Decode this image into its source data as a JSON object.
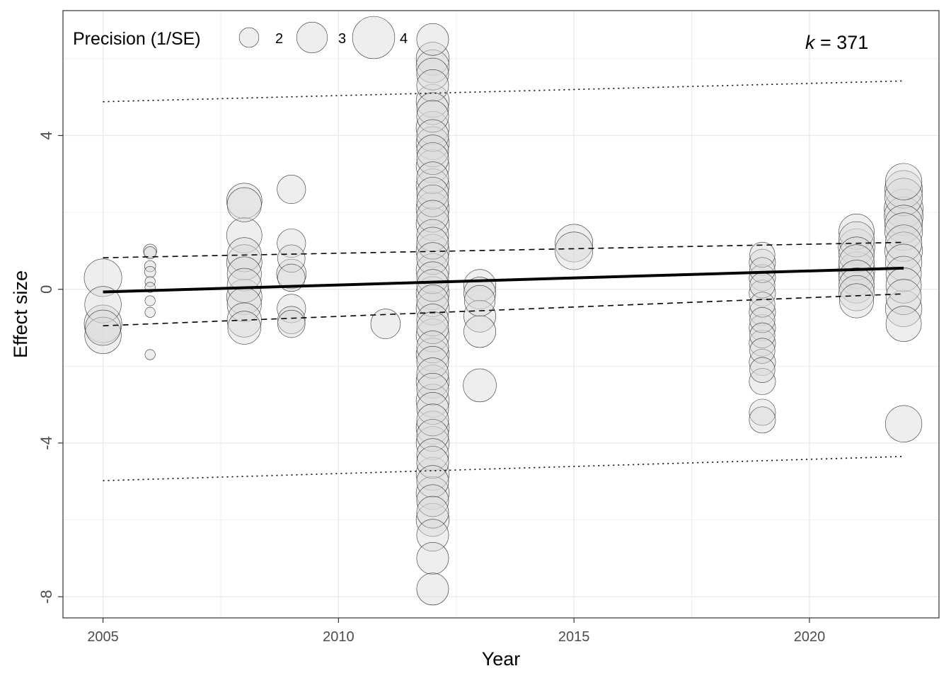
{
  "chart_data": {
    "type": "scatter",
    "xlabel": "Year",
    "ylabel": "Effect size",
    "xlim": [
      2004.15,
      2022.75
    ],
    "ylim": [
      -8.55,
      7.25
    ],
    "x_ticks": [
      2005,
      2010,
      2015,
      2020
    ],
    "x_tick_labels": [
      "2005",
      "2010",
      "2015",
      "2020"
    ],
    "y_ticks": [
      -8,
      -4,
      0,
      4
    ],
    "y_tick_labels": [
      "-8",
      "-4",
      "0",
      "4"
    ],
    "grid": true,
    "legend": {
      "title": "Precision (1/SE)",
      "position": "top-left",
      "items": [
        {
          "label": "2",
          "precision": 2
        },
        {
          "label": "3",
          "precision": 3
        },
        {
          "label": "4",
          "precision": 4
        }
      ]
    },
    "annotation": {
      "italic": "k",
      "rest": " = 371"
    },
    "colors": {
      "point_fill": "#d9d9d9",
      "point_stroke": "#333333",
      "line": "#000000",
      "panel_border": "#333333",
      "grid": "#ebebeb"
    },
    "points": [
      {
        "x": 2005,
        "y": 0.3,
        "p": 3.6
      },
      {
        "x": 2005,
        "y": -0.4,
        "p": 3.5
      },
      {
        "x": 2005,
        "y": -0.9,
        "p": 3.6
      },
      {
        "x": 2005,
        "y": -1.2,
        "p": 3.5
      },
      {
        "x": 2005,
        "y": -1.0,
        "p": 3.4
      },
      {
        "x": 2006,
        "y": 1.0,
        "p": 1.4
      },
      {
        "x": 2006,
        "y": 0.95,
        "p": 1.3
      },
      {
        "x": 2006,
        "y": 0.6,
        "p": 1.2
      },
      {
        "x": 2006,
        "y": 0.45,
        "p": 1.2
      },
      {
        "x": 2006,
        "y": 0.2,
        "p": 1.1
      },
      {
        "x": 2006,
        "y": 0.05,
        "p": 1.1
      },
      {
        "x": 2006,
        "y": -0.3,
        "p": 1.1
      },
      {
        "x": 2006,
        "y": -0.6,
        "p": 1.1
      },
      {
        "x": 2006,
        "y": -1.7,
        "p": 1.1
      },
      {
        "x": 2008,
        "y": 2.3,
        "p": 3.4
      },
      {
        "x": 2008,
        "y": 2.2,
        "p": 3.3
      },
      {
        "x": 2008,
        "y": 1.4,
        "p": 3.4
      },
      {
        "x": 2008,
        "y": 0.9,
        "p": 3.3
      },
      {
        "x": 2008,
        "y": 0.7,
        "p": 3.4
      },
      {
        "x": 2008,
        "y": 0.4,
        "p": 3.3
      },
      {
        "x": 2008,
        "y": 0.1,
        "p": 3.3
      },
      {
        "x": 2008,
        "y": -0.2,
        "p": 3.4
      },
      {
        "x": 2008,
        "y": -0.4,
        "p": 3.3
      },
      {
        "x": 2008,
        "y": -0.8,
        "p": 3.3
      },
      {
        "x": 2008,
        "y": -1.0,
        "p": 3.2
      },
      {
        "x": 2009,
        "y": 2.6,
        "p": 2.8
      },
      {
        "x": 2009,
        "y": 1.2,
        "p": 2.8
      },
      {
        "x": 2009,
        "y": 0.8,
        "p": 2.7
      },
      {
        "x": 2009,
        "y": 0.4,
        "p": 2.9
      },
      {
        "x": 2009,
        "y": 0.3,
        "p": 2.7
      },
      {
        "x": 2009,
        "y": -0.5,
        "p": 2.8
      },
      {
        "x": 2009,
        "y": -0.8,
        "p": 2.7
      },
      {
        "x": 2009,
        "y": -0.9,
        "p": 2.7
      },
      {
        "x": 2011,
        "y": -0.9,
        "p": 2.9
      },
      {
        "x": 2012,
        "y": 6.5,
        "p": 3.1
      },
      {
        "x": 2012,
        "y": 6.0,
        "p": 3.2
      },
      {
        "x": 2012,
        "y": 5.8,
        "p": 3.2
      },
      {
        "x": 2012,
        "y": 5.6,
        "p": 3.1
      },
      {
        "x": 2012,
        "y": 5.3,
        "p": 3.1
      },
      {
        "x": 2012,
        "y": 4.9,
        "p": 3.2
      },
      {
        "x": 2012,
        "y": 4.7,
        "p": 3.1
      },
      {
        "x": 2012,
        "y": 4.5,
        "p": 3.1
      },
      {
        "x": 2012,
        "y": 4.2,
        "p": 3.2
      },
      {
        "x": 2012,
        "y": 4.0,
        "p": 3.1
      },
      {
        "x": 2012,
        "y": 3.8,
        "p": 3.2
      },
      {
        "x": 2012,
        "y": 3.6,
        "p": 3.1
      },
      {
        "x": 2012,
        "y": 3.4,
        "p": 3.1
      },
      {
        "x": 2012,
        "y": 3.2,
        "p": 3.2
      },
      {
        "x": 2012,
        "y": 2.9,
        "p": 3.1
      },
      {
        "x": 2012,
        "y": 2.7,
        "p": 3.2
      },
      {
        "x": 2012,
        "y": 2.5,
        "p": 3.1
      },
      {
        "x": 2012,
        "y": 2.3,
        "p": 3.1
      },
      {
        "x": 2012,
        "y": 2.1,
        "p": 3.2
      },
      {
        "x": 2012,
        "y": 1.9,
        "p": 3.1
      },
      {
        "x": 2012,
        "y": 1.7,
        "p": 3.2
      },
      {
        "x": 2012,
        "y": 1.4,
        "p": 3.1
      },
      {
        "x": 2012,
        "y": 1.2,
        "p": 3.1
      },
      {
        "x": 2012,
        "y": 1.0,
        "p": 3.2
      },
      {
        "x": 2012,
        "y": 0.8,
        "p": 3.1
      },
      {
        "x": 2012,
        "y": 0.5,
        "p": 3.2
      },
      {
        "x": 2012,
        "y": 0.3,
        "p": 3.1
      },
      {
        "x": 2012,
        "y": 0.1,
        "p": 3.1
      },
      {
        "x": 2012,
        "y": -0.1,
        "p": 3.2
      },
      {
        "x": 2012,
        "y": -0.3,
        "p": 3.1
      },
      {
        "x": 2012,
        "y": -0.5,
        "p": 3.2
      },
      {
        "x": 2012,
        "y": -0.8,
        "p": 3.1
      },
      {
        "x": 2012,
        "y": -1.0,
        "p": 3.1
      },
      {
        "x": 2012,
        "y": -1.2,
        "p": 3.2
      },
      {
        "x": 2012,
        "y": -1.5,
        "p": 3.1
      },
      {
        "x": 2012,
        "y": -1.7,
        "p": 3.2
      },
      {
        "x": 2012,
        "y": -1.9,
        "p": 3.1
      },
      {
        "x": 2012,
        "y": -2.2,
        "p": 3.1
      },
      {
        "x": 2012,
        "y": -2.4,
        "p": 3.2
      },
      {
        "x": 2012,
        "y": -2.6,
        "p": 3.1
      },
      {
        "x": 2012,
        "y": -2.9,
        "p": 3.2
      },
      {
        "x": 2012,
        "y": -3.1,
        "p": 3.1
      },
      {
        "x": 2012,
        "y": -3.4,
        "p": 3.1
      },
      {
        "x": 2012,
        "y": -3.6,
        "p": 3.2
      },
      {
        "x": 2012,
        "y": -3.8,
        "p": 3.1
      },
      {
        "x": 2012,
        "y": -4.0,
        "p": 3.2
      },
      {
        "x": 2012,
        "y": -4.3,
        "p": 3.1
      },
      {
        "x": 2012,
        "y": -4.5,
        "p": 3.1
      },
      {
        "x": 2012,
        "y": -4.8,
        "p": 3.2
      },
      {
        "x": 2012,
        "y": -5.0,
        "p": 3.1
      },
      {
        "x": 2012,
        "y": -5.3,
        "p": 3.2
      },
      {
        "x": 2012,
        "y": -5.5,
        "p": 3.1
      },
      {
        "x": 2012,
        "y": -5.8,
        "p": 3.1
      },
      {
        "x": 2012,
        "y": -6.0,
        "p": 3.2
      },
      {
        "x": 2012,
        "y": -6.4,
        "p": 3.1
      },
      {
        "x": 2012,
        "y": -7.0,
        "p": 3.1
      },
      {
        "x": 2012,
        "y": -7.8,
        "p": 3.1
      },
      {
        "x": 2013,
        "y": 0.1,
        "p": 3.1
      },
      {
        "x": 2013,
        "y": -0.1,
        "p": 3.1
      },
      {
        "x": 2013,
        "y": -0.3,
        "p": 3.0
      },
      {
        "x": 2013,
        "y": -0.7,
        "p": 3.1
      },
      {
        "x": 2013,
        "y": -1.1,
        "p": 3.1
      },
      {
        "x": 2013,
        "y": -2.5,
        "p": 3.2
      },
      {
        "x": 2015,
        "y": 1.2,
        "p": 3.6
      },
      {
        "x": 2015,
        "y": 1.0,
        "p": 3.6
      },
      {
        "x": 2019,
        "y": 0.9,
        "p": 2.5
      },
      {
        "x": 2019,
        "y": 0.7,
        "p": 2.6
      },
      {
        "x": 2019,
        "y": 0.5,
        "p": 2.5
      },
      {
        "x": 2019,
        "y": 0.3,
        "p": 2.6
      },
      {
        "x": 2019,
        "y": 0.1,
        "p": 2.5
      },
      {
        "x": 2019,
        "y": -0.1,
        "p": 2.6
      },
      {
        "x": 2019,
        "y": -0.4,
        "p": 2.5
      },
      {
        "x": 2019,
        "y": -0.6,
        "p": 2.6
      },
      {
        "x": 2019,
        "y": -0.8,
        "p": 2.5
      },
      {
        "x": 2019,
        "y": -1.0,
        "p": 2.6
      },
      {
        "x": 2019,
        "y": -1.2,
        "p": 2.5
      },
      {
        "x": 2019,
        "y": -1.4,
        "p": 2.6
      },
      {
        "x": 2019,
        "y": -1.6,
        "p": 2.5
      },
      {
        "x": 2019,
        "y": -1.9,
        "p": 2.6
      },
      {
        "x": 2019,
        "y": -2.1,
        "p": 2.5
      },
      {
        "x": 2019,
        "y": -2.4,
        "p": 2.6
      },
      {
        "x": 2019,
        "y": -3.2,
        "p": 2.6
      },
      {
        "x": 2019,
        "y": -3.4,
        "p": 2.6
      },
      {
        "x": 2021,
        "y": 1.5,
        "p": 3.4
      },
      {
        "x": 2021,
        "y": 1.3,
        "p": 3.4
      },
      {
        "x": 2021,
        "y": 1.1,
        "p": 3.5
      },
      {
        "x": 2021,
        "y": 0.9,
        "p": 3.4
      },
      {
        "x": 2021,
        "y": 0.7,
        "p": 3.4
      },
      {
        "x": 2021,
        "y": 0.5,
        "p": 3.5
      },
      {
        "x": 2021,
        "y": 0.3,
        "p": 3.4
      },
      {
        "x": 2021,
        "y": 0.1,
        "p": 3.4
      },
      {
        "x": 2021,
        "y": -0.1,
        "p": 3.4
      },
      {
        "x": 2021,
        "y": -0.3,
        "p": 3.3
      },
      {
        "x": 2022,
        "y": 2.8,
        "p": 3.5
      },
      {
        "x": 2022,
        "y": 2.6,
        "p": 3.6
      },
      {
        "x": 2022,
        "y": 2.4,
        "p": 3.6
      },
      {
        "x": 2022,
        "y": 2.1,
        "p": 3.7
      },
      {
        "x": 2022,
        "y": 1.9,
        "p": 3.7
      },
      {
        "x": 2022,
        "y": 1.7,
        "p": 3.6
      },
      {
        "x": 2022,
        "y": 1.5,
        "p": 3.6
      },
      {
        "x": 2022,
        "y": 1.2,
        "p": 3.5
      },
      {
        "x": 2022,
        "y": 1.0,
        "p": 3.6
      },
      {
        "x": 2022,
        "y": 0.7,
        "p": 3.5
      },
      {
        "x": 2022,
        "y": 0.4,
        "p": 3.4
      },
      {
        "x": 2022,
        "y": 0.1,
        "p": 3.4
      },
      {
        "x": 2022,
        "y": -0.2,
        "p": 3.4
      },
      {
        "x": 2022,
        "y": -0.5,
        "p": 3.5
      },
      {
        "x": 2022,
        "y": -0.9,
        "p": 3.4
      },
      {
        "x": 2022,
        "y": -3.5,
        "p": 3.5
      }
    ],
    "lines": [
      {
        "name": "fit",
        "style": "solid",
        "x": [
          2005,
          2022
        ],
        "y": [
          -0.07,
          0.55
        ]
      },
      {
        "name": "ci-upper",
        "style": "dashed",
        "x": [
          2005,
          2022
        ],
        "y": [
          0.82,
          1.22
        ]
      },
      {
        "name": "ci-lower",
        "style": "dashed",
        "x": [
          2005,
          2022
        ],
        "y": [
          -0.95,
          -0.12
        ]
      },
      {
        "name": "pi-upper",
        "style": "dotted",
        "x": [
          2005,
          2022
        ],
        "y": [
          4.88,
          5.42
        ]
      },
      {
        "name": "pi-lower",
        "style": "dotted",
        "x": [
          2005,
          2022
        ],
        "y": [
          -4.98,
          -4.35
        ]
      }
    ]
  }
}
